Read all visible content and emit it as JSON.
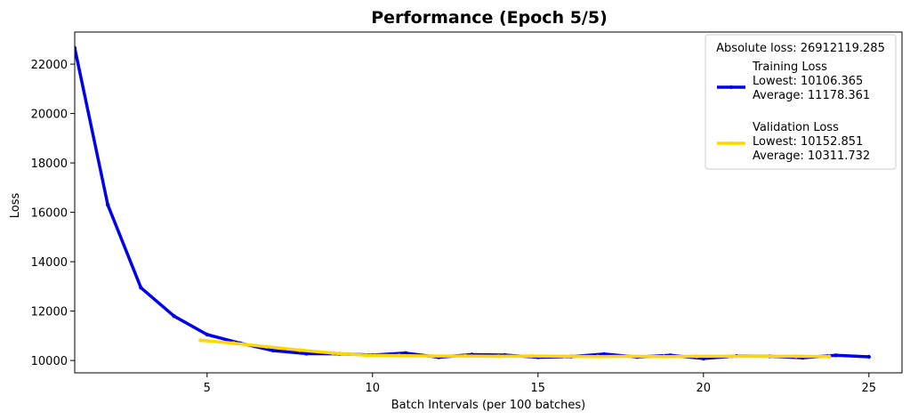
{
  "chart_data": {
    "type": "line",
    "title": "Performance (Epoch 5/5)",
    "xlabel": "Batch Intervals (per 100 batches)",
    "ylabel": "Loss",
    "xlim": [
      1,
      26
    ],
    "ylim": [
      9500,
      23300
    ],
    "xticks": [
      5,
      10,
      15,
      20,
      25
    ],
    "yticks": [
      10000,
      12000,
      14000,
      16000,
      18000,
      20000,
      22000
    ],
    "grid": false,
    "legend_position": "top-right",
    "legend_title": "Absolute loss: 26912119.285",
    "series": [
      {
        "name": "Training Loss",
        "stats": [
          "Lowest: 10106.365",
          "Average: 11178.361"
        ],
        "color": "#0000ee",
        "x": [
          1,
          2,
          3,
          4,
          5,
          6,
          7,
          8,
          9,
          10,
          11,
          12,
          13,
          14,
          15,
          16,
          17,
          18,
          19,
          20,
          21,
          22,
          23,
          24,
          25
        ],
        "values": [
          22650,
          16300,
          12950,
          11800,
          11050,
          10700,
          10400,
          10280,
          10270,
          10220,
          10300,
          10130,
          10240,
          10220,
          10130,
          10160,
          10260,
          10140,
          10210,
          10080,
          10180,
          10170,
          10110,
          10210,
          10150
        ]
      },
      {
        "name": "Validation Loss",
        "stats": [
          "Lowest: 10152.851",
          "Average: 10311.732"
        ],
        "color": "#ffd700",
        "x": [
          4.8,
          5.8,
          6.8,
          7.8,
          8.8,
          9.8,
          10.8,
          11.8,
          12.8,
          13.8,
          14.8,
          15.8,
          16.8,
          17.8,
          18.8,
          19.8,
          20.8,
          21.8,
          22.8,
          23.8
        ],
        "values": [
          10820,
          10700,
          10560,
          10420,
          10300,
          10210,
          10200,
          10180,
          10180,
          10170,
          10180,
          10170,
          10160,
          10170,
          10160,
          10170,
          10170,
          10170,
          10170,
          10160
        ]
      }
    ]
  }
}
